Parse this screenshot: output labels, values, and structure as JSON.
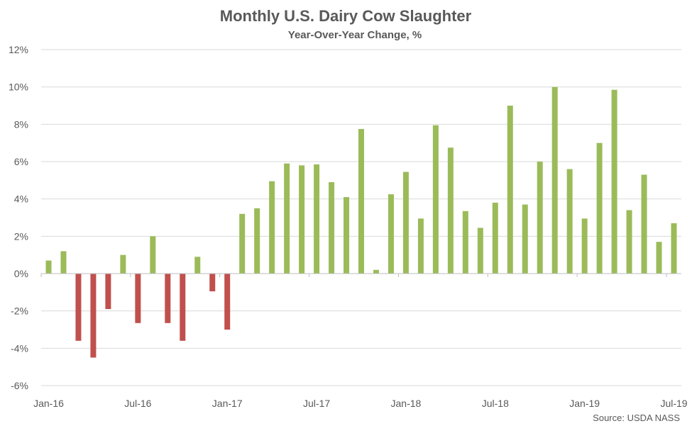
{
  "chart_data": {
    "type": "bar",
    "title": "Monthly U.S. Dairy Cow Slaughter",
    "subtitle": "Year-Over-Year Change, %",
    "source": "Source: USDA NASS",
    "xlabel": "",
    "ylabel": "",
    "ylim": [
      -6,
      12
    ],
    "yticks": [
      -6,
      -4,
      -2,
      0,
      2,
      4,
      6,
      8,
      10,
      12
    ],
    "ytick_labels": [
      "-6%",
      "-4%",
      "-2%",
      "0%",
      "2%",
      "4%",
      "6%",
      "8%",
      "10%",
      "12%"
    ],
    "xtick_labels": [
      "Jan-16",
      "Jul-16",
      "Jan-17",
      "Jul-17",
      "Jan-18",
      "Jul-18",
      "Jan-19",
      "Jul-19"
    ],
    "grid": true,
    "colors": {
      "positive": "#9BBB59",
      "negative": "#C0504D",
      "grid": "#D9D9D9"
    },
    "categories": [
      "Jan-16",
      "Feb-16",
      "Mar-16",
      "Apr-16",
      "May-16",
      "Jun-16",
      "Jul-16",
      "Aug-16",
      "Sep-16",
      "Oct-16",
      "Nov-16",
      "Dec-16",
      "Jan-17",
      "Feb-17",
      "Mar-17",
      "Apr-17",
      "May-17",
      "Jun-17",
      "Jul-17",
      "Aug-17",
      "Sep-17",
      "Oct-17",
      "Nov-17",
      "Dec-17",
      "Jan-18",
      "Feb-18",
      "Mar-18",
      "Apr-18",
      "May-18",
      "Jun-18",
      "Jul-18",
      "Aug-18",
      "Sep-18",
      "Oct-18",
      "Nov-18",
      "Dec-18",
      "Jan-19",
      "Feb-19",
      "Mar-19",
      "Apr-19",
      "May-19",
      "Jun-19",
      "Jul-19"
    ],
    "values": [
      0.7,
      1.2,
      -3.6,
      -4.5,
      -1.9,
      1.0,
      -2.65,
      2.0,
      -2.65,
      -3.6,
      0.9,
      -0.95,
      -3.0,
      3.2,
      3.5,
      4.95,
      5.9,
      5.8,
      5.85,
      4.9,
      4.1,
      7.75,
      0.2,
      4.25,
      5.45,
      2.95,
      7.95,
      6.75,
      3.35,
      2.45,
      3.8,
      9.0,
      3.7,
      6.0,
      10.0,
      5.6,
      2.95,
      7.0,
      9.85,
      3.4,
      5.3,
      1.7,
      2.7
    ]
  }
}
